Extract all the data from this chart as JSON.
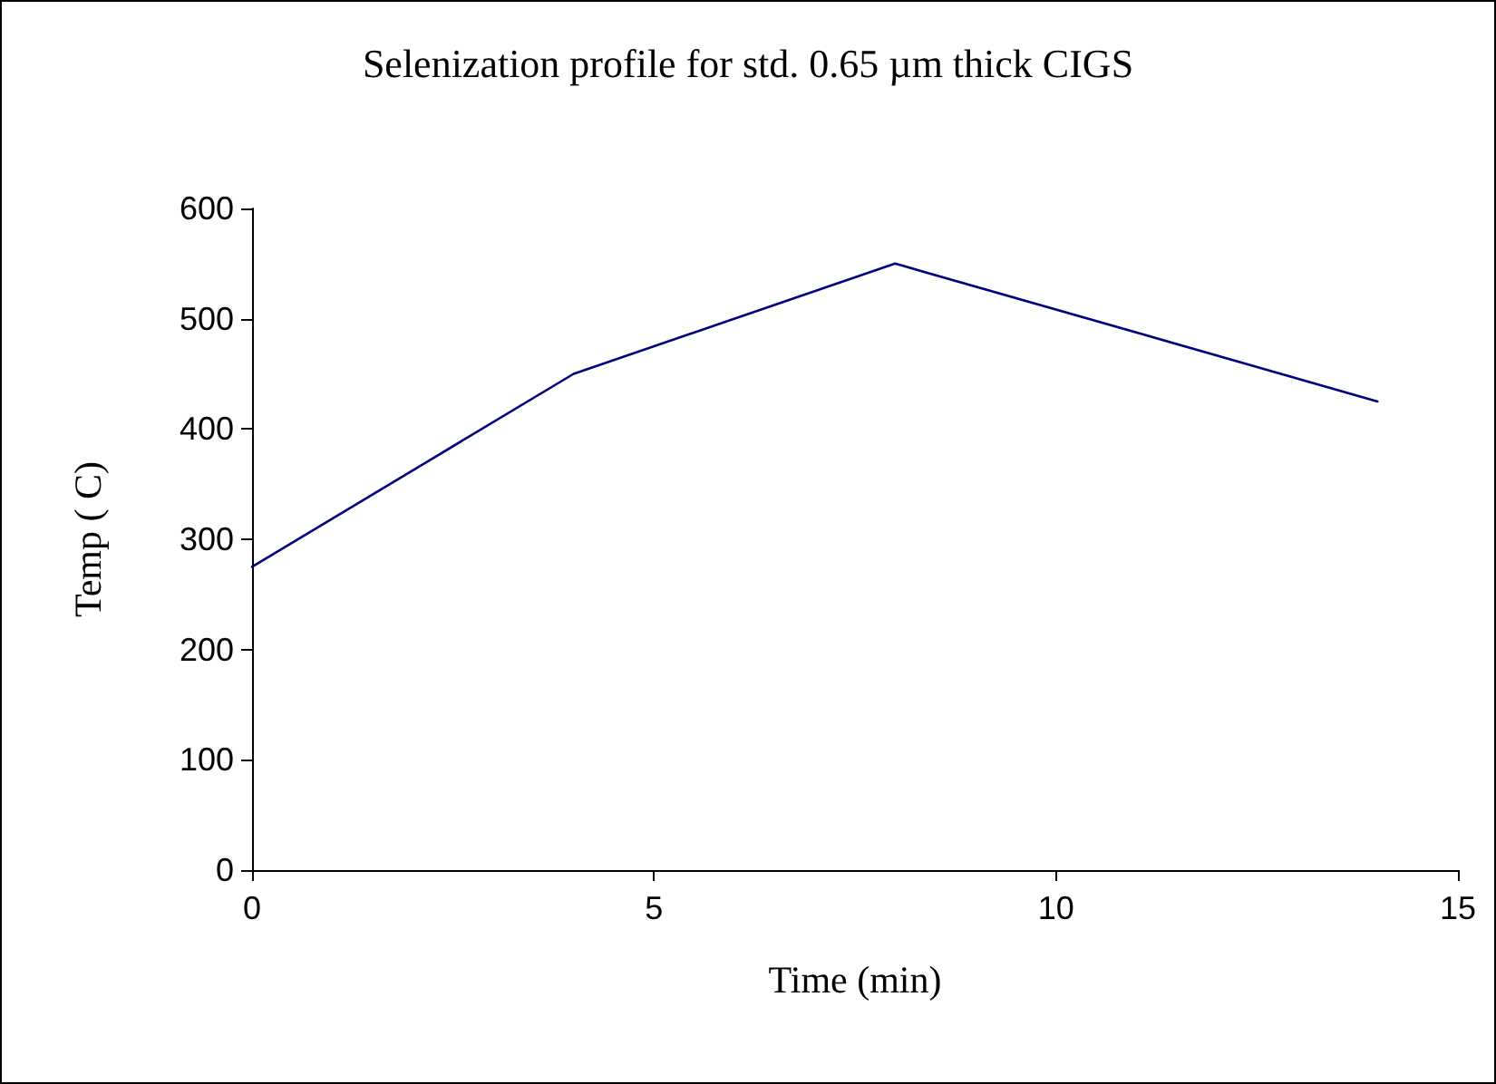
{
  "chart_data": {
    "type": "line",
    "title": "Selenization profile for std. 0.65 µm thick CIGS",
    "xlabel": "Time (min)",
    "ylabel": "Temp ( C)",
    "x": [
      0,
      4,
      8,
      14
    ],
    "series": [
      {
        "color": "#000080",
        "values": [
          275,
          450,
          550,
          425
        ]
      }
    ],
    "xlim": [
      0,
      15
    ],
    "xticks": [
      0,
      5,
      10,
      15
    ],
    "ylim": [
      0,
      600
    ],
    "yticks": [
      0,
      100,
      200,
      300,
      400,
      500,
      600
    ],
    "grid": false,
    "marker": "none",
    "line_style": "solid"
  }
}
